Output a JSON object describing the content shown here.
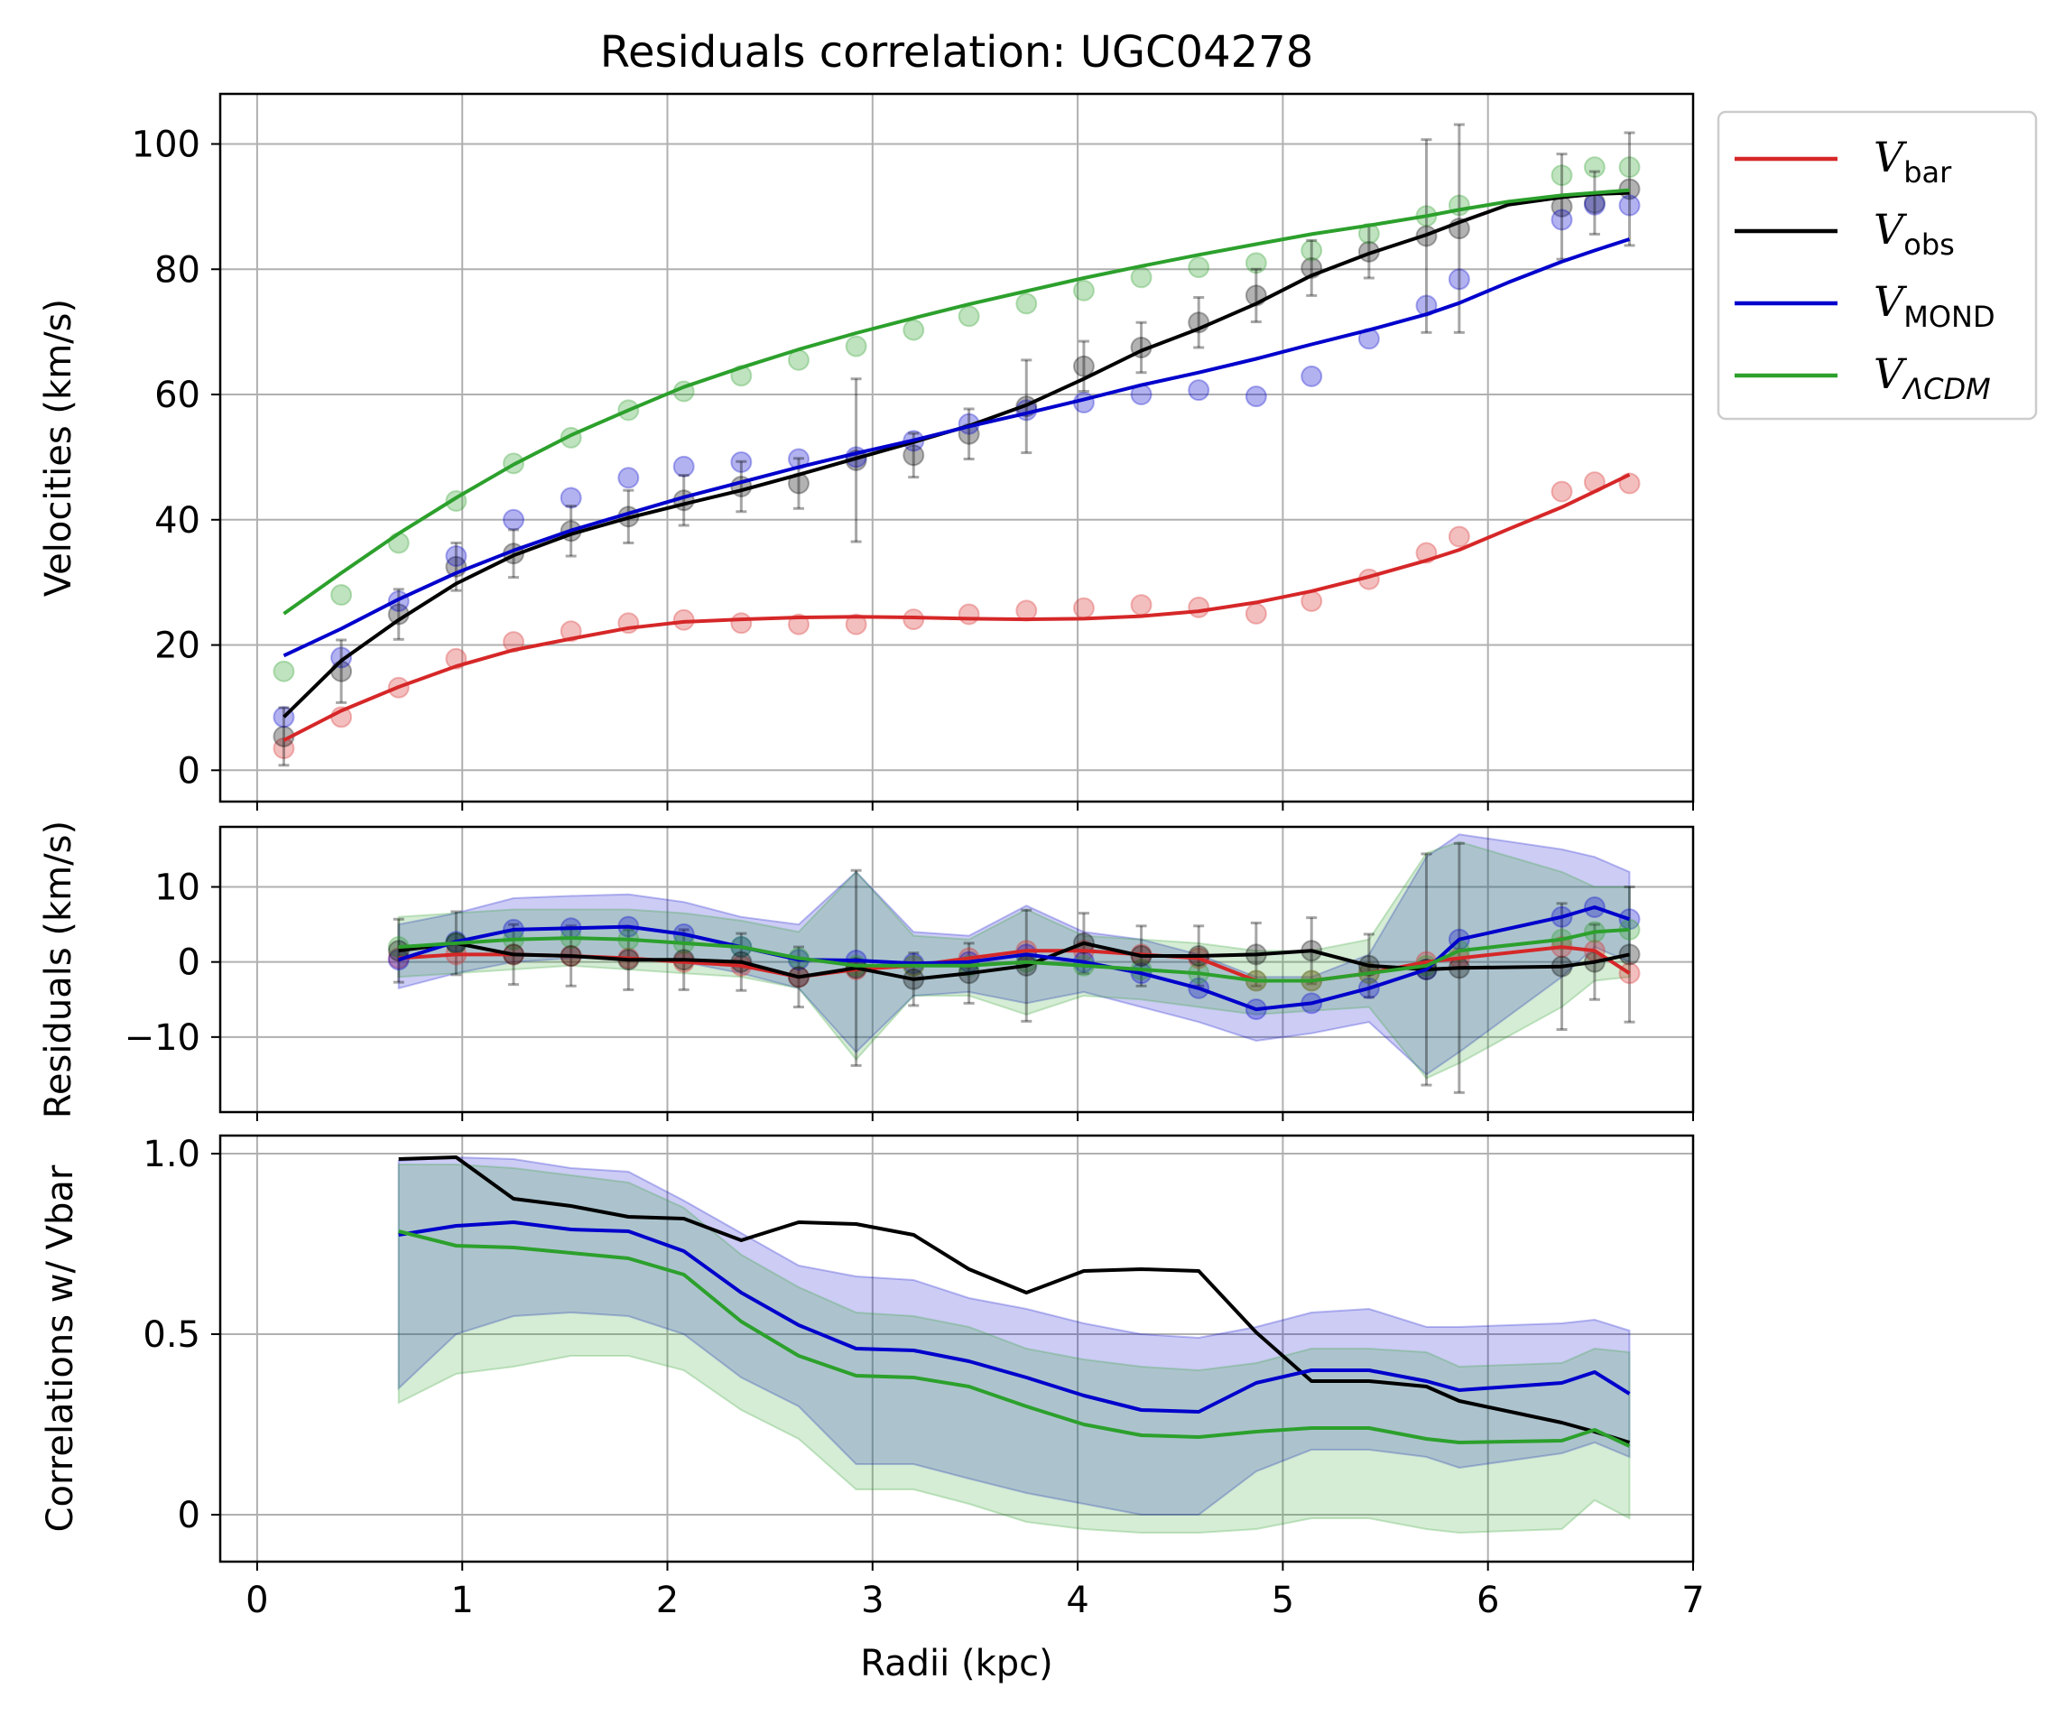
{
  "chart_data": [
    {
      "type": "line",
      "panel": "velocities",
      "title": "Residuals correlation: UGC04278",
      "ylabel": "Velocities (km/s)",
      "xlabel": "",
      "xlim": [
        -0.18,
        7.0
      ],
      "ylim": [
        -5,
        108
      ],
      "xticks": [
        0,
        1,
        2,
        3,
        4,
        5,
        6,
        7
      ],
      "yticks": [
        0,
        20,
        40,
        60,
        80,
        100
      ],
      "grid": true,
      "legend_position": "outside-right-top",
      "legend": [
        {
          "main": "V",
          "sub": "bar",
          "color": "#d62728"
        },
        {
          "main": "V",
          "sub": "obs",
          "color": "#000000"
        },
        {
          "main": "V",
          "sub": "MOND",
          "color": "#0000cc"
        },
        {
          "main": "V",
          "sub": "ΛCDM",
          "color": "#2ca02c"
        }
      ],
      "x": [
        0.13,
        0.41,
        0.69,
        0.97,
        1.25,
        1.53,
        1.81,
        2.08,
        2.36,
        2.64,
        2.92,
        3.2,
        3.47,
        3.75,
        4.03,
        4.31,
        4.59,
        4.87,
        5.14,
        5.42,
        5.7,
        5.86,
        6.36,
        6.52,
        6.69
      ],
      "scatter": [
        {
          "name": "bar",
          "color": "#d62728",
          "values": [
            3.5,
            8.5,
            13.2,
            17.8,
            20.5,
            22.2,
            23.5,
            24.0,
            23.5,
            23.3,
            23.3,
            24.1,
            24.9,
            25.5,
            25.9,
            26.4,
            26.0,
            25.0,
            27.0,
            30.5,
            34.7,
            37.3,
            44.5,
            46.0,
            45.8
          ]
        },
        {
          "name": "obs",
          "color": "#000000",
          "values": [
            5.4,
            15.8,
            24.9,
            32.5,
            34.6,
            38.2,
            40.5,
            43.1,
            45.3,
            45.8,
            49.5,
            50.3,
            53.7,
            58.1,
            64.5,
            67.5,
            71.5,
            75.8,
            80.2,
            82.8,
            85.3,
            86.5,
            90.0,
            90.6,
            92.8
          ]
        },
        {
          "name": "MOND",
          "color": "#0000cc",
          "values": [
            8.5,
            18.0,
            27.0,
            34.2,
            40.0,
            43.5,
            46.7,
            48.5,
            49.2,
            49.7,
            50.0,
            52.6,
            55.3,
            57.5,
            58.7,
            60.0,
            60.7,
            59.7,
            62.9,
            68.9,
            74.2,
            78.4,
            87.9,
            90.3,
            90.2
          ]
        },
        {
          "name": "ΛCDM",
          "color": "#2ca02c",
          "values": [
            15.8,
            28.0,
            36.3,
            43.0,
            49.0,
            53.1,
            57.5,
            60.5,
            63.0,
            65.5,
            67.7,
            70.3,
            72.5,
            74.5,
            76.6,
            78.7,
            80.3,
            81.0,
            83.0,
            85.7,
            88.5,
            90.2,
            95.0,
            96.3,
            96.3
          ]
        }
      ],
      "obs_errors": [
        4.6,
        5.0,
        4.0,
        3.8,
        3.8,
        4.0,
        4.2,
        4.0,
        4.0,
        4.0,
        13.0,
        3.5,
        4.0,
        7.4,
        4.0,
        4.0,
        4.0,
        4.2,
        4.4,
        4.2,
        15.4,
        16.6,
        8.4,
        5.0,
        9.0
      ],
      "series": [
        {
          "name": "V_bar",
          "color": "#d62728",
          "x": [
            0.13,
            0.41,
            0.69,
            0.97,
            1.25,
            1.53,
            1.81,
            2.08,
            2.36,
            2.64,
            2.92,
            3.2,
            3.47,
            3.75,
            4.03,
            4.31,
            4.59,
            4.87,
            5.14,
            5.42,
            5.7,
            5.86,
            6.1,
            6.36,
            6.52,
            6.69
          ],
          "values": [
            4.8,
            9.5,
            13.3,
            16.6,
            19.2,
            21.0,
            22.7,
            23.7,
            24.1,
            24.4,
            24.5,
            24.4,
            24.2,
            24.1,
            24.2,
            24.6,
            25.4,
            26.8,
            28.6,
            30.9,
            33.5,
            35.2,
            38.5,
            42.0,
            44.5,
            47.2
          ]
        },
        {
          "name": "V_obs",
          "color": "#000000",
          "x": [
            0.13,
            0.41,
            0.69,
            0.97,
            1.25,
            1.53,
            1.81,
            2.08,
            2.36,
            2.64,
            2.92,
            3.2,
            3.47,
            3.75,
            4.03,
            4.31,
            4.59,
            4.87,
            5.14,
            5.42,
            5.7,
            5.86,
            6.1,
            6.36,
            6.52,
            6.69
          ],
          "values": [
            8.5,
            17.5,
            24.0,
            29.8,
            34.3,
            37.7,
            40.3,
            42.5,
            44.7,
            47.2,
            49.8,
            52.4,
            55.0,
            58.3,
            62.5,
            67.0,
            70.5,
            74.5,
            79.0,
            82.5,
            85.5,
            87.5,
            90.3,
            91.5,
            92.0,
            92.2
          ]
        },
        {
          "name": "V_MOND",
          "color": "#0000cc",
          "x": [
            0.13,
            0.41,
            0.69,
            0.97,
            1.25,
            1.53,
            1.81,
            2.08,
            2.36,
            2.64,
            2.92,
            3.2,
            3.47,
            3.75,
            4.03,
            4.31,
            4.59,
            4.87,
            5.14,
            5.42,
            5.7,
            5.86,
            6.1,
            6.36,
            6.52,
            6.69
          ],
          "values": [
            18.3,
            22.6,
            27.3,
            31.5,
            35.1,
            38.3,
            41.0,
            43.6,
            46.0,
            48.4,
            50.6,
            52.7,
            54.9,
            57.0,
            59.2,
            61.5,
            63.5,
            65.7,
            68.0,
            70.3,
            72.8,
            74.6,
            77.9,
            81.2,
            83.0,
            84.8
          ]
        },
        {
          "name": "V_ΛCDM",
          "color": "#2ca02c",
          "x": [
            0.13,
            0.41,
            0.69,
            0.97,
            1.25,
            1.53,
            1.81,
            2.08,
            2.36,
            2.64,
            2.92,
            3.2,
            3.47,
            3.75,
            4.03,
            4.31,
            4.59,
            4.87,
            5.14,
            5.42,
            5.7,
            5.86,
            6.1,
            6.36,
            6.52,
            6.69
          ],
          "values": [
            25.0,
            31.5,
            37.8,
            43.5,
            48.8,
            53.5,
            57.5,
            61.2,
            64.3,
            67.2,
            69.8,
            72.2,
            74.4,
            76.5,
            78.6,
            80.5,
            82.3,
            84.0,
            85.6,
            87.0,
            88.5,
            89.5,
            90.8,
            91.8,
            92.2,
            92.6
          ]
        }
      ]
    },
    {
      "type": "line",
      "panel": "residuals",
      "ylabel": "Residuals (km/s)",
      "xlim": [
        -0.18,
        7.0
      ],
      "ylim": [
        -20,
        18
      ],
      "yticks": [
        -10,
        0,
        10
      ],
      "grid": true,
      "x": [
        0.69,
        0.97,
        1.25,
        1.53,
        1.81,
        2.08,
        2.36,
        2.64,
        2.92,
        3.2,
        3.47,
        3.75,
        4.03,
        4.31,
        4.59,
        4.87,
        5.14,
        5.42,
        5.7,
        5.86,
        6.36,
        6.52,
        6.69
      ],
      "series": [
        {
          "name": "bar",
          "color": "#d62728",
          "values": [
            0.5,
            1.0,
            1.0,
            0.8,
            0.5,
            0.0,
            -0.5,
            -2.0,
            -1.0,
            -0.5,
            0.5,
            1.5,
            1.5,
            1.0,
            0.5,
            -2.5,
            -2.5,
            -1.5,
            0.0,
            0.5,
            2.0,
            1.5,
            -1.5
          ]
        },
        {
          "name": "obs",
          "color": "#000000",
          "values": [
            1.5,
            2.5,
            1.0,
            0.8,
            0.3,
            0.3,
            0.0,
            -2.0,
            -0.8,
            -2.3,
            -1.5,
            -0.5,
            2.5,
            0.8,
            0.8,
            1.0,
            1.5,
            -0.5,
            -1.0,
            -0.8,
            -0.6,
            0.0,
            1.0
          ]
        },
        {
          "name": "MOND",
          "color": "#0000cc",
          "values": [
            0.3,
            2.7,
            4.3,
            4.5,
            4.7,
            3.7,
            2.0,
            0.3,
            0.2,
            -0.2,
            0.0,
            1.0,
            0.0,
            -1.5,
            -3.5,
            -6.3,
            -5.5,
            -3.5,
            -1.0,
            3.0,
            6.0,
            7.3,
            5.7
          ]
        },
        {
          "name": "ΛCDM",
          "color": "#2ca02c",
          "values": [
            2.0,
            2.5,
            3.0,
            3.2,
            3.0,
            2.5,
            2.0,
            0.5,
            -0.5,
            -0.5,
            -0.5,
            0.0,
            -0.5,
            -1.0,
            -1.5,
            -2.5,
            -2.5,
            -1.5,
            -0.5,
            1.5,
            3.0,
            4.0,
            4.3
          ]
        }
      ],
      "obs_errors": [
        4.2,
        4.2,
        4.0,
        4.0,
        4.0,
        4.0,
        3.8,
        4.0,
        13.0,
        3.5,
        4.0,
        7.4,
        4.0,
        4.0,
        4.0,
        4.2,
        4.4,
        4.2,
        15.4,
        16.6,
        8.4,
        5.0,
        9.0
      ],
      "bands": [
        {
          "name": "MOND",
          "color": "#0000cc",
          "upper": [
            5.0,
            6.5,
            8.5,
            8.8,
            9.0,
            8.0,
            6.0,
            5.0,
            12.0,
            4.0,
            3.5,
            7.5,
            4.0,
            3.0,
            1.0,
            -2.0,
            -2.0,
            1.0,
            14.0,
            17.0,
            15.0,
            14.0,
            12.0
          ],
          "lower": [
            -3.5,
            -1.5,
            0.0,
            0.5,
            0.5,
            0.0,
            -1.5,
            -3.5,
            -12.0,
            -4.5,
            -4.0,
            -5.5,
            -4.0,
            -6.0,
            -8.0,
            -10.5,
            -9.5,
            -8.0,
            -15.0,
            -12.0,
            -2.0,
            2.0,
            0.0
          ]
        },
        {
          "name": "ΛCDM",
          "color": "#2ca02c",
          "upper": [
            6.0,
            6.5,
            7.0,
            7.0,
            7.0,
            6.5,
            5.5,
            4.0,
            12.0,
            3.5,
            3.0,
            7.0,
            3.5,
            3.0,
            2.5,
            1.5,
            1.5,
            3.0,
            14.5,
            16.0,
            12.0,
            10.0,
            10.0
          ],
          "lower": [
            -2.0,
            -1.5,
            -1.0,
            -0.5,
            -1.0,
            -1.5,
            -2.0,
            -3.5,
            -13.0,
            -4.5,
            -4.5,
            -7.0,
            -4.5,
            -5.0,
            -6.0,
            -7.0,
            -6.5,
            -6.0,
            -15.5,
            -13.5,
            -6.0,
            -2.5,
            -2.0
          ]
        }
      ]
    },
    {
      "type": "line",
      "panel": "correlations",
      "ylabel": "Correlations w/ Vbar",
      "xlabel": "Radii (kpc)",
      "xlim": [
        -0.18,
        7.0
      ],
      "ylim": [
        -0.13,
        1.05
      ],
      "yticks": [
        0.0,
        0.5,
        1.0
      ],
      "xticks": [
        0,
        1,
        2,
        3,
        4,
        5,
        6,
        7
      ],
      "grid": true,
      "x": [
        0.69,
        0.97,
        1.25,
        1.53,
        1.81,
        2.08,
        2.36,
        2.64,
        2.92,
        3.2,
        3.47,
        3.75,
        4.03,
        4.31,
        4.59,
        4.87,
        5.14,
        5.42,
        5.7,
        5.86,
        6.36,
        6.52,
        6.69
      ],
      "series": [
        {
          "name": "obs",
          "color": "#000000",
          "values": [
            0.985,
            0.99,
            0.875,
            0.855,
            0.825,
            0.82,
            0.76,
            0.81,
            0.805,
            0.775,
            0.68,
            0.615,
            0.675,
            0.68,
            0.675,
            0.505,
            0.37,
            0.37,
            0.355,
            0.315,
            0.255,
            0.23,
            0.2
          ]
        },
        {
          "name": "MOND",
          "color": "#0000cc",
          "values": [
            0.775,
            0.8,
            0.81,
            0.79,
            0.785,
            0.73,
            0.615,
            0.525,
            0.46,
            0.455,
            0.425,
            0.38,
            0.33,
            0.29,
            0.285,
            0.365,
            0.4,
            0.4,
            0.37,
            0.345,
            0.365,
            0.395,
            0.335
          ]
        },
        {
          "name": "ΛCDM",
          "color": "#2ca02c",
          "values": [
            0.785,
            0.745,
            0.74,
            0.725,
            0.71,
            0.665,
            0.535,
            0.44,
            0.385,
            0.38,
            0.355,
            0.3,
            0.25,
            0.22,
            0.215,
            0.23,
            0.24,
            0.24,
            0.21,
            0.2,
            0.205,
            0.235,
            0.19
          ]
        }
      ],
      "bands": [
        {
          "name": "MOND",
          "color": "#0000cc",
          "upper": [
            0.98,
            0.99,
            0.985,
            0.96,
            0.95,
            0.87,
            0.78,
            0.69,
            0.66,
            0.65,
            0.6,
            0.57,
            0.53,
            0.5,
            0.49,
            0.52,
            0.56,
            0.57,
            0.52,
            0.52,
            0.53,
            0.54,
            0.51
          ],
          "lower": [
            0.35,
            0.5,
            0.55,
            0.56,
            0.55,
            0.5,
            0.38,
            0.3,
            0.14,
            0.14,
            0.1,
            0.06,
            0.03,
            0.0,
            0.0,
            0.12,
            0.18,
            0.18,
            0.16,
            0.13,
            0.17,
            0.2,
            0.16
          ]
        },
        {
          "name": "ΛCDM",
          "color": "#2ca02c",
          "upper": [
            0.97,
            0.97,
            0.96,
            0.94,
            0.92,
            0.85,
            0.72,
            0.63,
            0.56,
            0.55,
            0.52,
            0.46,
            0.43,
            0.41,
            0.4,
            0.42,
            0.46,
            0.46,
            0.45,
            0.41,
            0.42,
            0.46,
            0.45
          ],
          "lower": [
            0.31,
            0.39,
            0.41,
            0.44,
            0.44,
            0.4,
            0.29,
            0.21,
            0.07,
            0.07,
            0.03,
            -0.02,
            -0.04,
            -0.05,
            -0.05,
            -0.04,
            -0.01,
            -0.01,
            -0.04,
            -0.05,
            -0.04,
            0.04,
            -0.01
          ]
        }
      ]
    }
  ]
}
